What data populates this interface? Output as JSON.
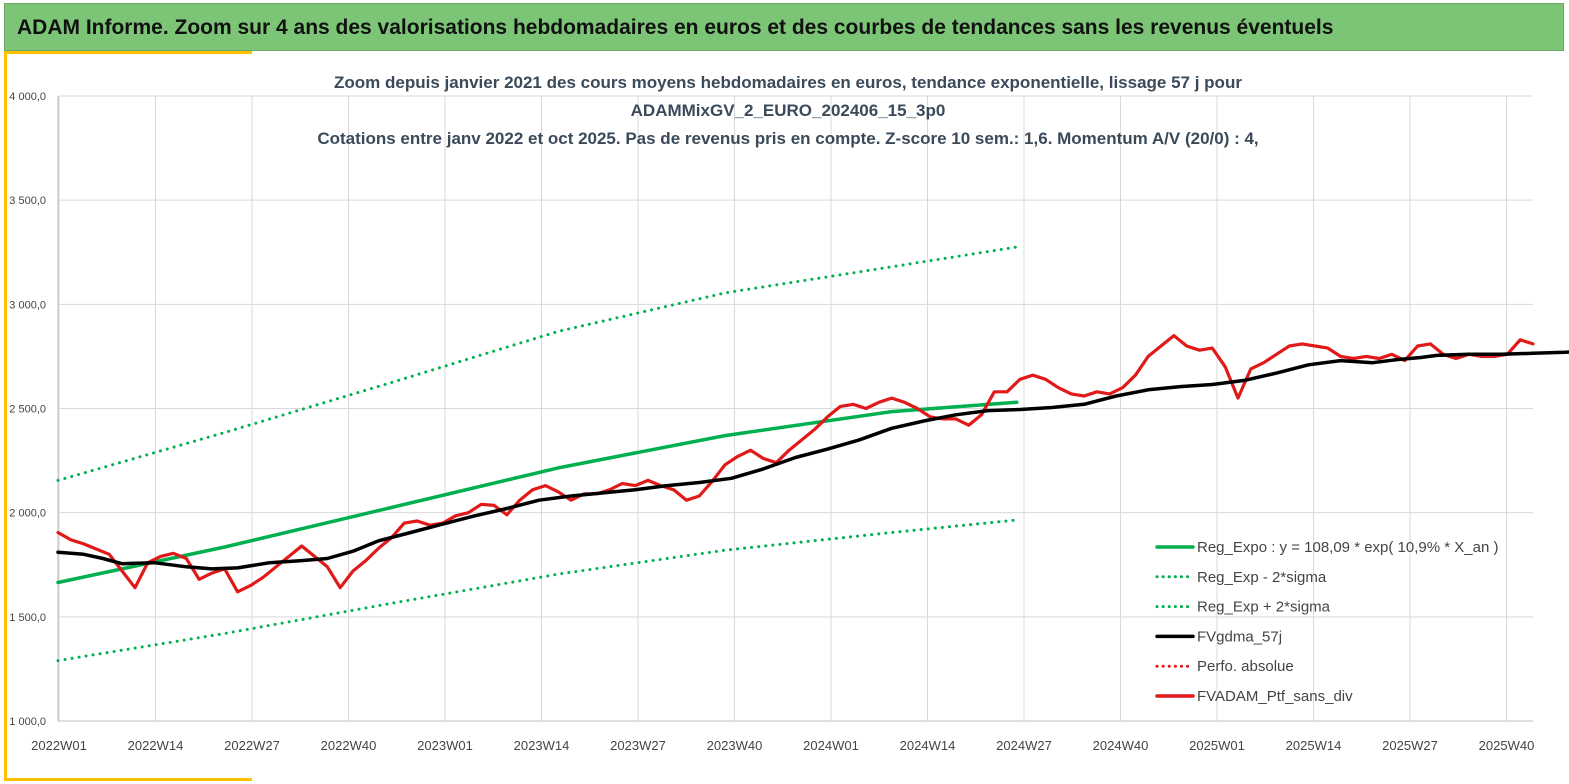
{
  "banner": {
    "title": "ADAM Informe. Zoom sur 4 ans des valorisations hebdomadaires en euros et des courbes de tendances sans les revenus éventuels",
    "color": "#7cc576",
    "accent_color": "#ffc000"
  },
  "chart_data": {
    "type": "line",
    "title_lines": [
      "Zoom depuis janvier 2021 des cours moyens hebdomadaires  en euros, tendance exponentielle, lissage 57 j pour",
      "ADAMMixGV_2_EURO_202406_15_3p0",
      "Cotations  entre janv 2022 et oct 2025. Pas de revenus pris en compte. Z-score 10 sem.: 1,6. Momentum A/V (20/0) : 4,"
    ],
    "y_ticks": [
      "1 000,0",
      "1 500,0",
      "2 000,0",
      "2 500,0",
      "3 000,0",
      "3 500,0",
      "4 000,0"
    ],
    "y_tick_values": [
      1000,
      1500,
      2000,
      2500,
      3000,
      3500,
      4000
    ],
    "ylim": [
      1000,
      4000
    ],
    "x_ticks": [
      "2022W01",
      "2022W14",
      "2022W27",
      "2022W40",
      "2023W01",
      "2023W14",
      "2023W27",
      "2023W40",
      "2024W01",
      "2024W14",
      "2024W27",
      "2024W40",
      "2025W01",
      "2025W14",
      "2025W27",
      "2025W40"
    ],
    "x_week_range": [
      0,
      199
    ],
    "grid": "vertical and horizontal",
    "legend_position": "bottom-right",
    "series": [
      {
        "name": "Reg_Expo : y = 108,09 * exp( 10,9% *  X_an )",
        "color": "#00b050",
        "style": "solid",
        "points": [
          [
            0,
            1665
          ],
          [
            52,
            1835
          ],
          [
            104,
            2025
          ],
          [
            156,
            2215
          ],
          [
            208,
            2370
          ],
          [
            260,
            2485
          ],
          [
            299,
            2530
          ]
        ]
      },
      {
        "name": "Reg_Exp - 2*sigma",
        "color": "#00b050",
        "style": "dotted",
        "points": [
          [
            0,
            1290
          ],
          [
            52,
            1420
          ],
          [
            104,
            1565
          ],
          [
            156,
            1705
          ],
          [
            208,
            1820
          ],
          [
            260,
            1905
          ],
          [
            299,
            1965
          ]
        ]
      },
      {
        "name": "Reg_Exp + 2*sigma",
        "color": "#00b050",
        "style": "dotted",
        "points": [
          [
            0,
            2155
          ],
          [
            52,
            2385
          ],
          [
            104,
            2625
          ],
          [
            156,
            2870
          ],
          [
            208,
            3055
          ],
          [
            260,
            3180
          ],
          [
            299,
            3275
          ]
        ]
      },
      {
        "name": "FVgdma_57j",
        "color": "#000000",
        "style": "solid",
        "points": [
          [
            0,
            1810
          ],
          [
            8,
            1800
          ],
          [
            14,
            1780
          ],
          [
            20,
            1755
          ],
          [
            30,
            1760
          ],
          [
            40,
            1740
          ],
          [
            48,
            1730
          ],
          [
            56,
            1735
          ],
          [
            66,
            1760
          ],
          [
            76,
            1770
          ],
          [
            84,
            1780
          ],
          [
            92,
            1815
          ],
          [
            100,
            1865
          ],
          [
            110,
            1905
          ],
          [
            120,
            1945
          ],
          [
            130,
            1985
          ],
          [
            140,
            2020
          ],
          [
            150,
            2060
          ],
          [
            160,
            2080
          ],
          [
            170,
            2095
          ],
          [
            180,
            2110
          ],
          [
            190,
            2130
          ],
          [
            200,
            2145
          ],
          [
            210,
            2165
          ],
          [
            220,
            2210
          ],
          [
            230,
            2265
          ],
          [
            240,
            2305
          ],
          [
            250,
            2350
          ],
          [
            260,
            2405
          ],
          [
            270,
            2440
          ],
          [
            280,
            2470
          ],
          [
            290,
            2490
          ],
          [
            300,
            2495
          ],
          [
            310,
            2505
          ],
          [
            320,
            2520
          ],
          [
            330,
            2560
          ],
          [
            340,
            2590
          ],
          [
            350,
            2605
          ],
          [
            360,
            2615
          ],
          [
            370,
            2635
          ],
          [
            380,
            2670
          ],
          [
            390,
            2710
          ],
          [
            400,
            2730
          ],
          [
            410,
            2720
          ],
          [
            418,
            2735
          ],
          [
            425,
            2745
          ],
          [
            430,
            2755
          ],
          [
            440,
            2760
          ],
          [
            450,
            2760
          ],
          [
            460,
            2765
          ],
          [
            470,
            2770
          ],
          [
            480,
            2780
          ],
          [
            490,
            2785
          ],
          [
            500,
            2795
          ]
        ]
      },
      {
        "name": "Perfo. absolue",
        "color": "#e11919",
        "style": "dotted",
        "points": []
      },
      {
        "name": "FVADAM_Ptf_sans_div",
        "color": "#e11919",
        "style": "solid",
        "points": [
          [
            0,
            1905
          ],
          [
            4,
            1870
          ],
          [
            8,
            1850
          ],
          [
            12,
            1825
          ],
          [
            16,
            1800
          ],
          [
            20,
            1720
          ],
          [
            24,
            1640
          ],
          [
            28,
            1760
          ],
          [
            32,
            1790
          ],
          [
            36,
            1805
          ],
          [
            40,
            1780
          ],
          [
            44,
            1680
          ],
          [
            48,
            1710
          ],
          [
            52,
            1730
          ],
          [
            56,
            1620
          ],
          [
            60,
            1650
          ],
          [
            64,
            1690
          ],
          [
            68,
            1740
          ],
          [
            72,
            1790
          ],
          [
            76,
            1840
          ],
          [
            80,
            1790
          ],
          [
            84,
            1740
          ],
          [
            88,
            1640
          ],
          [
            92,
            1720
          ],
          [
            96,
            1770
          ],
          [
            100,
            1830
          ],
          [
            104,
            1880
          ],
          [
            108,
            1950
          ],
          [
            112,
            1960
          ],
          [
            116,
            1940
          ],
          [
            120,
            1950
          ],
          [
            124,
            1985
          ],
          [
            128,
            2000
          ],
          [
            132,
            2040
          ],
          [
            136,
            2035
          ],
          [
            140,
            1990
          ],
          [
            144,
            2060
          ],
          [
            148,
            2110
          ],
          [
            152,
            2130
          ],
          [
            156,
            2100
          ],
          [
            160,
            2060
          ],
          [
            164,
            2090
          ],
          [
            168,
            2090
          ],
          [
            172,
            2110
          ],
          [
            176,
            2140
          ],
          [
            180,
            2130
          ],
          [
            184,
            2155
          ],
          [
            188,
            2130
          ],
          [
            192,
            2110
          ],
          [
            196,
            2060
          ],
          [
            200,
            2080
          ],
          [
            204,
            2150
          ],
          [
            208,
            2230
          ],
          [
            212,
            2270
          ],
          [
            216,
            2300
          ],
          [
            220,
            2260
          ],
          [
            224,
            2240
          ],
          [
            228,
            2300
          ],
          [
            232,
            2350
          ],
          [
            236,
            2400
          ],
          [
            240,
            2460
          ],
          [
            244,
            2510
          ],
          [
            248,
            2520
          ],
          [
            252,
            2500
          ],
          [
            256,
            2530
          ],
          [
            260,
            2550
          ],
          [
            264,
            2530
          ],
          [
            268,
            2500
          ],
          [
            272,
            2460
          ],
          [
            276,
            2450
          ],
          [
            280,
            2450
          ],
          [
            284,
            2420
          ],
          [
            288,
            2470
          ],
          [
            292,
            2580
          ],
          [
            296,
            2580
          ],
          [
            300,
            2640
          ],
          [
            304,
            2660
          ],
          [
            308,
            2640
          ],
          [
            312,
            2600
          ],
          [
            316,
            2570
          ],
          [
            320,
            2560
          ],
          [
            324,
            2580
          ],
          [
            328,
            2570
          ],
          [
            332,
            2600
          ],
          [
            336,
            2660
          ],
          [
            340,
            2750
          ],
          [
            344,
            2800
          ],
          [
            348,
            2850
          ],
          [
            352,
            2800
          ],
          [
            356,
            2780
          ],
          [
            360,
            2790
          ],
          [
            364,
            2700
          ],
          [
            368,
            2550
          ],
          [
            372,
            2690
          ],
          [
            376,
            2720
          ],
          [
            380,
            2760
          ],
          [
            384,
            2800
          ],
          [
            388,
            2810
          ],
          [
            392,
            2800
          ],
          [
            396,
            2790
          ],
          [
            400,
            2750
          ],
          [
            404,
            2740
          ],
          [
            408,
            2750
          ],
          [
            412,
            2740
          ],
          [
            416,
            2760
          ],
          [
            420,
            2730
          ],
          [
            424,
            2800
          ],
          [
            428,
            2810
          ],
          [
            432,
            2760
          ],
          [
            436,
            2740
          ],
          [
            440,
            2760
          ],
          [
            444,
            2750
          ],
          [
            448,
            2750
          ],
          [
            452,
            2760
          ],
          [
            456,
            2830
          ],
          [
            460,
            2810
          ]
        ]
      }
    ]
  }
}
